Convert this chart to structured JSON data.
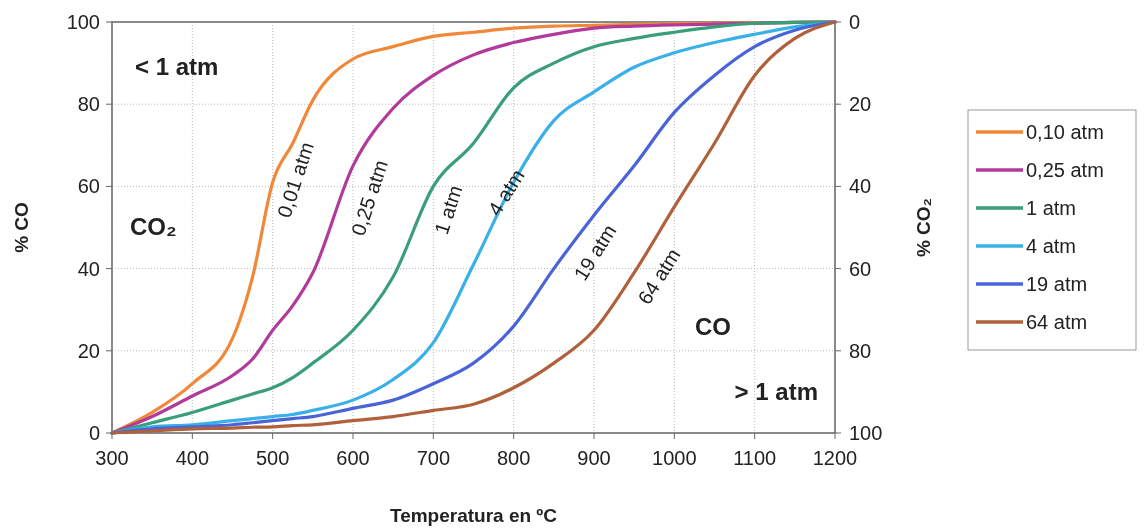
{
  "chart_data": {
    "type": "line",
    "xlabel": "Temperatura en ºC",
    "ylabel": "% CO",
    "y2label": "% CO₂",
    "xlim": [
      300,
      1200
    ],
    "xticks": [
      300,
      400,
      500,
      600,
      700,
      800,
      900,
      1000,
      1100,
      1200
    ],
    "ylim": [
      0,
      100
    ],
    "yticks": [
      0,
      20,
      40,
      60,
      80,
      100
    ],
    "y2lim": [
      100,
      0
    ],
    "y2ticks": [
      0,
      20,
      40,
      60,
      80,
      100
    ],
    "grid": true,
    "legend": "right",
    "marker": "none",
    "line_style": "solid",
    "x": [
      300,
      350,
      400,
      450,
      475,
      500,
      525,
      550,
      600,
      650,
      700,
      750,
      800,
      850,
      900,
      950,
      1000,
      1050,
      1100,
      1150,
      1200
    ],
    "series": [
      {
        "name": "0,10 atm",
        "color": "#f0883a",
        "values": [
          0,
          5,
          12,
          23,
          38,
          61,
          70.5,
          81,
          91,
          94,
          96.5,
          97.5,
          98.5,
          99,
          99.2,
          99.4,
          99.6,
          99.7,
          99.8,
          99.9,
          100
        ]
      },
      {
        "name": "0,25 atm",
        "color": "#b23a9a",
        "values": [
          0,
          4,
          9,
          14,
          18,
          25,
          31,
          39,
          65,
          79,
          87,
          92,
          95,
          97,
          98.5,
          99,
          99.3,
          99.5,
          99.7,
          99.9,
          100
        ]
      },
      {
        "name": "1 atm",
        "color": "#3a9e78",
        "values": [
          0,
          2.5,
          5,
          8,
          9.5,
          11,
          13.5,
          17,
          25,
          38,
          60,
          70.5,
          84,
          90,
          94,
          96,
          97.5,
          98.8,
          99.7,
          99.9,
          100
        ]
      },
      {
        "name": "4 atm",
        "color": "#3ab0e8",
        "values": [
          0,
          1.5,
          2,
          3,
          3.5,
          4,
          4.5,
          5.5,
          8,
          13,
          22,
          41,
          61,
          76,
          83,
          89,
          92.5,
          95,
          97,
          98.8,
          100
        ]
      },
      {
        "name": "19 atm",
        "color": "#4a64d8",
        "values": [
          0,
          1,
          1.5,
          2,
          2.5,
          3,
          3.5,
          4,
          6,
          8,
          12,
          17,
          26,
          40,
          53,
          65,
          78,
          87,
          94,
          98,
          100
        ]
      },
      {
        "name": "64 atm",
        "color": "#b0603a",
        "values": [
          0,
          0.5,
          1,
          1.2,
          1.4,
          1.5,
          1.8,
          2,
          3,
          4,
          5.5,
          7,
          11,
          17,
          25,
          39,
          55,
          70.5,
          87,
          96,
          100
        ]
      }
    ],
    "annotations": [
      "< 1 atm",
      "CO₂",
      "CO",
      "> 1 atm",
      "0,01 atm",
      "0,25 atm",
      "1 atm",
      "4 atm",
      "19 atm",
      "64 atm"
    ]
  }
}
